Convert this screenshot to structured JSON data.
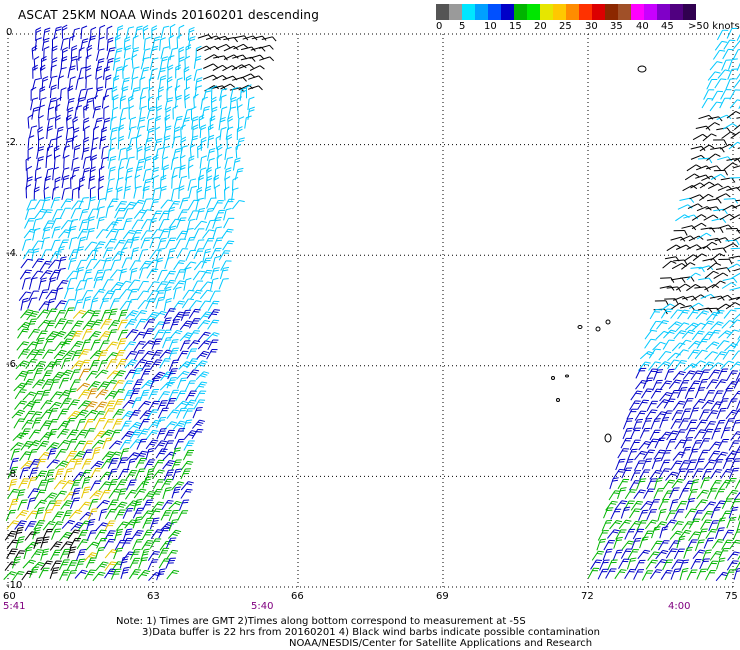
{
  "title": "ASCAT 25KM NOAA Winds 20160201 descending",
  "legend": {
    "colors": [
      "#555555",
      "#9a9a9a",
      "#00e6ff",
      "#00a0ff",
      "#0050ff",
      "#0000c8",
      "#00b400",
      "#00e600",
      "#e6e600",
      "#ffc800",
      "#ff8c00",
      "#ff3200",
      "#dc0000",
      "#8c2800",
      "#a05028",
      "#ff00ff",
      "#c800ff",
      "#8000c8",
      "#500080",
      "#300050"
    ],
    "labels": [
      "0",
      "5",
      "10",
      "15",
      "20",
      "25",
      "30",
      "35",
      "40",
      "45",
      ">50 knots"
    ],
    "barb_colors": {
      "black": "#000000",
      "cyan": "#00c8ff",
      "blue": "#0000c8",
      "green": "#00b400",
      "yellow": "#e6c800",
      "orange": "#d28c00"
    }
  },
  "map": {
    "lat_ticks": [
      "0",
      "-2",
      "-4",
      "-6",
      "-8",
      "-10"
    ],
    "lon_ticks": [
      "60",
      "63",
      "66",
      "69",
      "72",
      "75"
    ],
    "pass_times": [
      "5:41",
      "5:40",
      "4:00"
    ]
  },
  "notes": {
    "line1": "Note: 1) Times are GMT 2)Times along bottom correspond to measurement at -5S",
    "line2": "3)Data buffer is 22 hrs from 20160201 4) Black wind barbs indicate possible contamination",
    "line3": "NOAA/NESDIS/Center for Satellite Applications and Research"
  }
}
